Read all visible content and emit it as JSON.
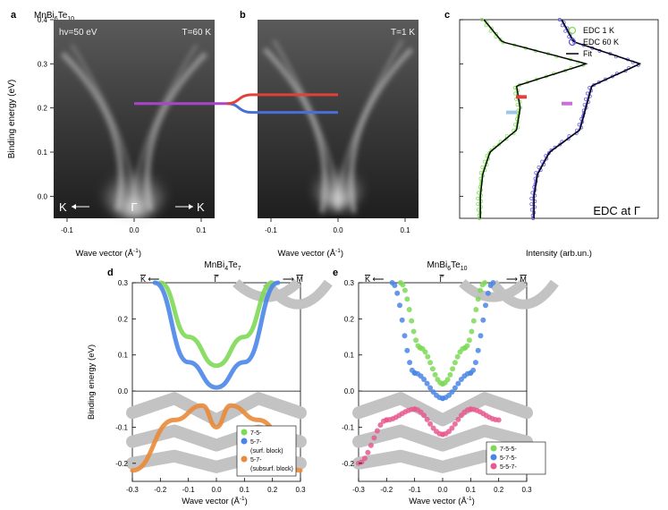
{
  "panels": {
    "a": {
      "letter": "a",
      "title_main": "MnBi",
      "title_s1": "6",
      "title_mid": "Te",
      "title_s2": "10",
      "inset_left": "hv=50 eV",
      "inset_right": "T=60 K",
      "k_left": "K",
      "gamma": "Γ",
      "k_right": "K"
    },
    "b": {
      "letter": "b",
      "inset_right": "T=1 K"
    },
    "c": {
      "letter": "c",
      "note": "EDC at Γ",
      "xlabel": "Intensity (arb.un.)"
    },
    "d": {
      "letter": "d",
      "title_main": "MnBi",
      "title_s1": "4",
      "title_mid": "Te",
      "title_s2": "7",
      "k_left": "K",
      "gamma": "Γ",
      "m_right": "M"
    },
    "e": {
      "letter": "e",
      "title_main": "MnBi",
      "title_s1": "6",
      "title_mid": "Te",
      "title_s2": "10",
      "k_left": "K",
      "gamma": "Γ",
      "m_right": "M"
    }
  },
  "axis_text": {
    "binding_energy_ev": "Binding energy (eV)",
    "wave_vector": "Wave vector (Å",
    "inv_sup": "-1",
    "close": ")"
  },
  "chart_data": [
    {
      "id": "a",
      "type": "heatmap",
      "xlabel": "Wave vector (Å⁻¹)",
      "ylabel": "Binding energy (eV)",
      "xlim": [
        -0.12,
        0.12
      ],
      "ylim": [
        0.4,
        -0.05
      ],
      "xticks": [
        -0.1,
        0.0,
        0.1
      ],
      "yticks": [
        0.0,
        0.1,
        0.2,
        0.3,
        0.4
      ],
      "marker_energy_ev": 0.21,
      "marker_color": "#a845c8"
    },
    {
      "id": "b",
      "type": "heatmap",
      "xlabel": "Wave vector (Å⁻¹)",
      "xlim": [
        -0.12,
        0.12
      ],
      "ylim": [
        0.4,
        -0.05
      ],
      "xticks": [
        -0.1,
        0.0,
        0.1
      ],
      "marker_upper_energy_ev": 0.19,
      "marker_upper_color": "#4a6fd8",
      "marker_lower_energy_ev": 0.23,
      "marker_lower_color": "#e2403a"
    },
    {
      "id": "c",
      "type": "line",
      "xlabel": "Intensity (arb.un.)",
      "ylim": [
        0.4,
        -0.05
      ],
      "yticks": [
        0.0,
        0.1,
        0.2,
        0.3,
        0.4
      ],
      "legend": [
        {
          "name": "EDC 1 K",
          "color": "#7ed957",
          "style": "circle"
        },
        {
          "name": "EDC 60 K",
          "color": "#5a52d6",
          "style": "circle"
        },
        {
          "name": "Fit",
          "color": "#000000",
          "style": "line"
        }
      ],
      "series": [
        {
          "name": "EDC 1 K",
          "color": "#7ed957",
          "energy": [
            0.0,
            0.05,
            0.1,
            0.15,
            0.2,
            0.25,
            0.3,
            0.35,
            0.4
          ],
          "intensity": [
            0.12,
            0.14,
            0.2,
            0.42,
            0.45,
            0.42,
            1.0,
            0.3,
            0.15
          ]
        },
        {
          "name": "EDC 60 K",
          "color": "#5a52d6",
          "energy": [
            0.0,
            0.05,
            0.1,
            0.15,
            0.2,
            0.25,
            0.3,
            0.35,
            0.4
          ],
          "intensity": [
            0.12,
            0.15,
            0.25,
            0.5,
            0.55,
            0.6,
            1.0,
            0.45,
            0.35
          ]
        }
      ],
      "peak_markers": [
        {
          "energy_ev": 0.19,
          "color": "#9fc6e4"
        },
        {
          "energy_ev": 0.225,
          "color": "#e2403a"
        },
        {
          "energy_ev": 0.21,
          "color": "#c970d6"
        }
      ]
    },
    {
      "id": "d",
      "type": "line",
      "xlabel": "Wave vector (Å⁻¹)",
      "ylabel": "Binding energy (eV)",
      "xlim": [
        -0.3,
        0.3
      ],
      "ylim": [
        -0.25,
        0.3
      ],
      "xticks": [
        -0.3,
        -0.2,
        -0.1,
        0.0,
        0.1,
        0.2,
        0.3
      ],
      "yticks": [
        -0.2,
        -0.1,
        0.0,
        0.1,
        0.2,
        0.3
      ],
      "legend": [
        {
          "name": "7-5-",
          "color": "#7ed957"
        },
        {
          "name": "5-7-\n(surf. block)",
          "color": "#4a86e8"
        },
        {
          "name": "5-7-\n(subsurf. block)",
          "color": "#ea8a3a"
        }
      ],
      "bands": [
        {
          "name": "7-5-",
          "color": "#7ed957",
          "x": [
            -0.2,
            -0.1,
            0.0,
            0.1,
            0.2
          ],
          "y": [
            0.3,
            0.15,
            0.07,
            0.15,
            0.3
          ]
        },
        {
          "name": "5-7- (surf. block)",
          "color": "#4a86e8",
          "x": [
            -0.22,
            -0.1,
            0.0,
            0.1,
            0.22
          ],
          "y": [
            0.3,
            0.08,
            0.01,
            0.08,
            0.3
          ]
        },
        {
          "name": "5-7- (subsurf. block)",
          "color": "#ea8a3a",
          "x": [
            -0.3,
            -0.15,
            -0.05,
            0.0,
            0.05,
            0.15,
            0.3
          ],
          "y": [
            -0.22,
            -0.08,
            -0.04,
            -0.1,
            -0.04,
            -0.08,
            -0.22
          ]
        }
      ]
    },
    {
      "id": "e",
      "type": "scatter",
      "xlabel": "Wave vector (Å⁻¹)",
      "xlim": [
        -0.3,
        0.3
      ],
      "ylim": [
        -0.25,
        0.3
      ],
      "xticks": [
        -0.3,
        -0.2,
        -0.1,
        0.0,
        0.1,
        0.2,
        0.3
      ],
      "yticks": [
        -0.2,
        -0.1,
        0.0,
        0.1,
        0.2,
        0.3
      ],
      "legend": [
        {
          "name": "7-5-5-",
          "color": "#7ed957"
        },
        {
          "name": "5-7-5-",
          "color": "#4a86e8"
        },
        {
          "name": "5-5-7-",
          "color": "#e85a8f"
        }
      ],
      "bands": [
        {
          "name": "7-5-5-",
          "color": "#7ed957",
          "x": [
            -0.15,
            -0.08,
            0.0,
            0.08,
            0.15
          ],
          "y": [
            0.3,
            0.12,
            0.02,
            0.12,
            0.3
          ]
        },
        {
          "name": "5-7-5-",
          "color": "#4a86e8",
          "x": [
            -0.18,
            -0.1,
            0.0,
            0.1,
            0.18
          ],
          "y": [
            0.3,
            0.05,
            -0.02,
            0.05,
            0.3
          ]
        },
        {
          "name": "5-5-7-",
          "color": "#e85a8f",
          "x": [
            -0.3,
            -0.2,
            -0.1,
            0.0,
            0.1,
            0.2
          ],
          "y": [
            -0.2,
            -0.08,
            -0.05,
            -0.12,
            -0.05,
            -0.08
          ]
        }
      ]
    }
  ]
}
